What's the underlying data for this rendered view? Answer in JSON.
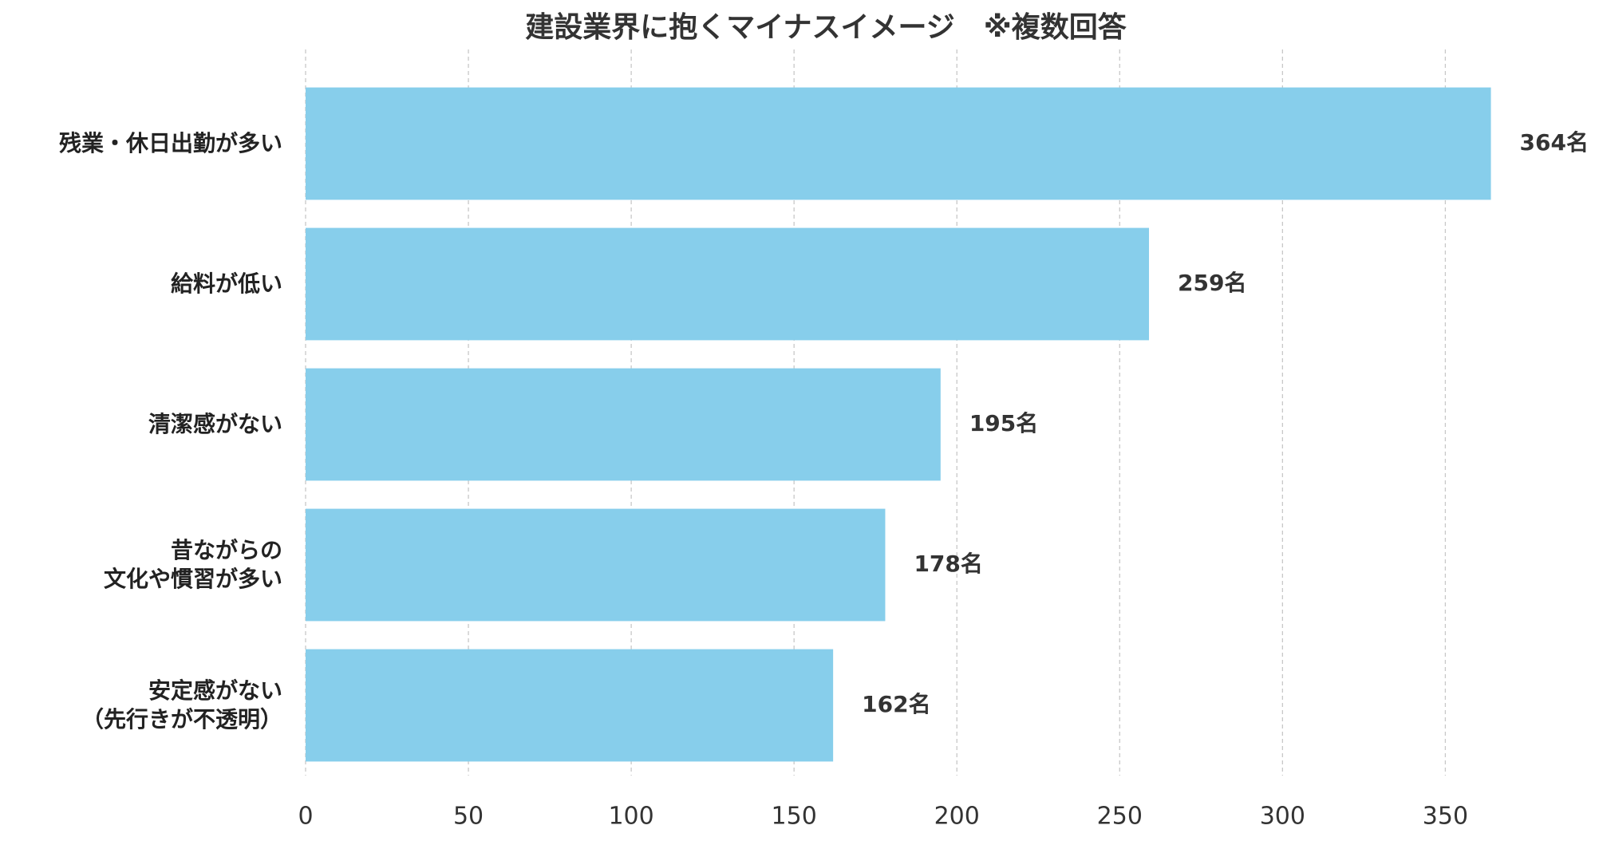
{
  "chart_data": {
    "type": "bar",
    "orientation": "horizontal",
    "title": "建設業界に抱くマイナスイメージ　※複数回答",
    "categories": [
      "残業・休日出勤が多い",
      "給料が低い",
      "清潔感がない",
      "昔ながらの\n文化や慣習が多い",
      "安定感がない\n（先行きが不透明）"
    ],
    "values": [
      364,
      259,
      195,
      178,
      162
    ],
    "value_labels": [
      "364名",
      "259名",
      "195名",
      "178名",
      "162名"
    ],
    "color": "#87ceeb",
    "xlim": [
      0,
      382
    ],
    "xticks": [
      0,
      50,
      100,
      150,
      200,
      250,
      300,
      350
    ],
    "grid": true
  }
}
